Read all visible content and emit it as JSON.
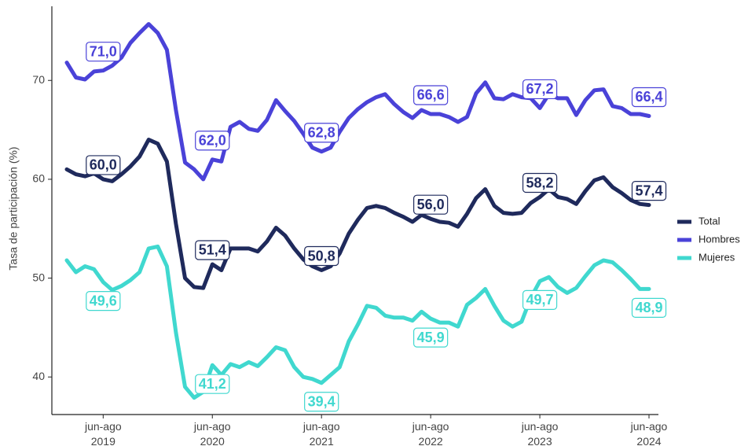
{
  "chart_data": {
    "type": "line",
    "y_label": "Tasa de participación (%)",
    "legend": "right",
    "categories": [
      null,
      null,
      null,
      null,
      "jun-ago 2019",
      null,
      null,
      null,
      null,
      null,
      null,
      null,
      null,
      null,
      null,
      null,
      "jun-ago 2020",
      null,
      null,
      null,
      null,
      null,
      null,
      null,
      null,
      null,
      null,
      null,
      "jun-ago 2021",
      null,
      null,
      null,
      null,
      null,
      null,
      null,
      null,
      null,
      null,
      null,
      "jun-ago 2022",
      null,
      null,
      null,
      null,
      null,
      null,
      null,
      null,
      null,
      null,
      null,
      "jun-ago 2023",
      null,
      null,
      null,
      null,
      null,
      null,
      null,
      null,
      null,
      null,
      null,
      "jun-ago 2024"
    ],
    "ylim": [
      36.2,
      77.5
    ],
    "yticks": [
      40,
      50,
      60,
      70
    ],
    "series": [
      {
        "name": "Total",
        "color": "#1f2a5c",
        "values": [
          61.0,
          60.5,
          60.3,
          60.6,
          60.0,
          59.8,
          60.5,
          61.3,
          62.3,
          64.0,
          63.6,
          61.8,
          55.5,
          50.0,
          49.1,
          49.0,
          51.4,
          50.8,
          53.0,
          53.0,
          53.0,
          52.7,
          53.7,
          55.1,
          54.3,
          53.0,
          51.9,
          51.2,
          50.8,
          51.2,
          52.5,
          54.5,
          55.9,
          57.1,
          57.3,
          57.1,
          56.6,
          56.2,
          55.7,
          56.4,
          56.0,
          55.7,
          55.6,
          55.2,
          56.5,
          58.1,
          59.0,
          57.3,
          56.6,
          56.5,
          56.6,
          57.6,
          58.2,
          59.0,
          58.2,
          58.0,
          57.5,
          58.8,
          59.9,
          60.2,
          59.2,
          58.6,
          57.9,
          57.5,
          57.4
        ],
        "value_labels": [
          null,
          null,
          null,
          null,
          "60,0",
          null,
          null,
          null,
          null,
          null,
          null,
          null,
          null,
          null,
          null,
          null,
          "51,4",
          null,
          null,
          null,
          null,
          null,
          null,
          null,
          null,
          null,
          null,
          null,
          "50,8",
          null,
          null,
          null,
          null,
          null,
          null,
          null,
          null,
          null,
          null,
          null,
          "56,0",
          null,
          null,
          null,
          null,
          null,
          null,
          null,
          null,
          null,
          null,
          null,
          "58,2",
          null,
          null,
          null,
          null,
          null,
          null,
          null,
          null,
          null,
          null,
          null,
          "57,4"
        ]
      },
      {
        "name": "Hombres",
        "color": "#4a42d8",
        "values": [
          71.8,
          70.3,
          70.1,
          70.9,
          71.0,
          71.5,
          72.3,
          73.8,
          74.8,
          75.7,
          74.8,
          73.1,
          67.0,
          61.7,
          61.0,
          60.0,
          62.0,
          61.8,
          65.3,
          65.8,
          65.1,
          64.9,
          66.0,
          68.0,
          66.9,
          65.9,
          64.6,
          63.2,
          62.8,
          63.2,
          64.8,
          66.2,
          67.1,
          67.8,
          68.3,
          68.6,
          67.6,
          66.8,
          66.2,
          67.0,
          66.6,
          66.6,
          66.3,
          65.8,
          66.3,
          68.7,
          69.8,
          68.2,
          68.1,
          68.6,
          68.3,
          68.2,
          67.2,
          68.6,
          68.2,
          68.2,
          66.5,
          68.0,
          69.0,
          69.1,
          67.4,
          67.2,
          66.6,
          66.6,
          66.4
        ],
        "value_labels": [
          null,
          null,
          null,
          null,
          "71,0",
          null,
          null,
          null,
          null,
          null,
          null,
          null,
          null,
          null,
          null,
          null,
          "62,0",
          null,
          null,
          null,
          null,
          null,
          null,
          null,
          null,
          null,
          null,
          null,
          "62,8",
          null,
          null,
          null,
          null,
          null,
          null,
          null,
          null,
          null,
          null,
          null,
          "66,6",
          null,
          null,
          null,
          null,
          null,
          null,
          null,
          null,
          null,
          null,
          null,
          "67,2",
          null,
          null,
          null,
          null,
          null,
          null,
          null,
          null,
          null,
          null,
          null,
          "66,4"
        ]
      },
      {
        "name": "Mujeres",
        "color": "#40d8cf",
        "values": [
          51.8,
          50.6,
          51.2,
          50.9,
          49.6,
          48.8,
          49.2,
          49.8,
          50.6,
          53.0,
          53.2,
          51.2,
          44.5,
          39.0,
          37.9,
          38.5,
          41.2,
          40.2,
          41.3,
          41.0,
          41.5,
          41.1,
          42.0,
          43.0,
          42.7,
          41.0,
          40.0,
          39.8,
          39.4,
          40.2,
          41.0,
          43.6,
          45.3,
          47.2,
          47.0,
          46.2,
          46.0,
          46.0,
          45.7,
          46.6,
          45.9,
          45.5,
          45.5,
          45.1,
          47.3,
          48.0,
          48.9,
          47.2,
          45.7,
          45.1,
          45.6,
          48.0,
          49.7,
          50.1,
          49.1,
          48.5,
          49.0,
          50.2,
          51.3,
          51.8,
          51.6,
          50.8,
          49.9,
          48.9,
          48.9
        ],
        "value_labels": [
          null,
          null,
          null,
          null,
          "49,6",
          null,
          null,
          null,
          null,
          null,
          null,
          null,
          null,
          null,
          null,
          null,
          "41,2",
          null,
          null,
          null,
          null,
          null,
          null,
          null,
          null,
          null,
          null,
          null,
          "39,4",
          null,
          null,
          null,
          null,
          null,
          null,
          null,
          null,
          null,
          null,
          null,
          "45,9",
          null,
          null,
          null,
          null,
          null,
          null,
          null,
          null,
          null,
          null,
          null,
          "49,7",
          null,
          null,
          null,
          null,
          null,
          null,
          null,
          null,
          null,
          null,
          null,
          "48,9"
        ]
      }
    ]
  }
}
